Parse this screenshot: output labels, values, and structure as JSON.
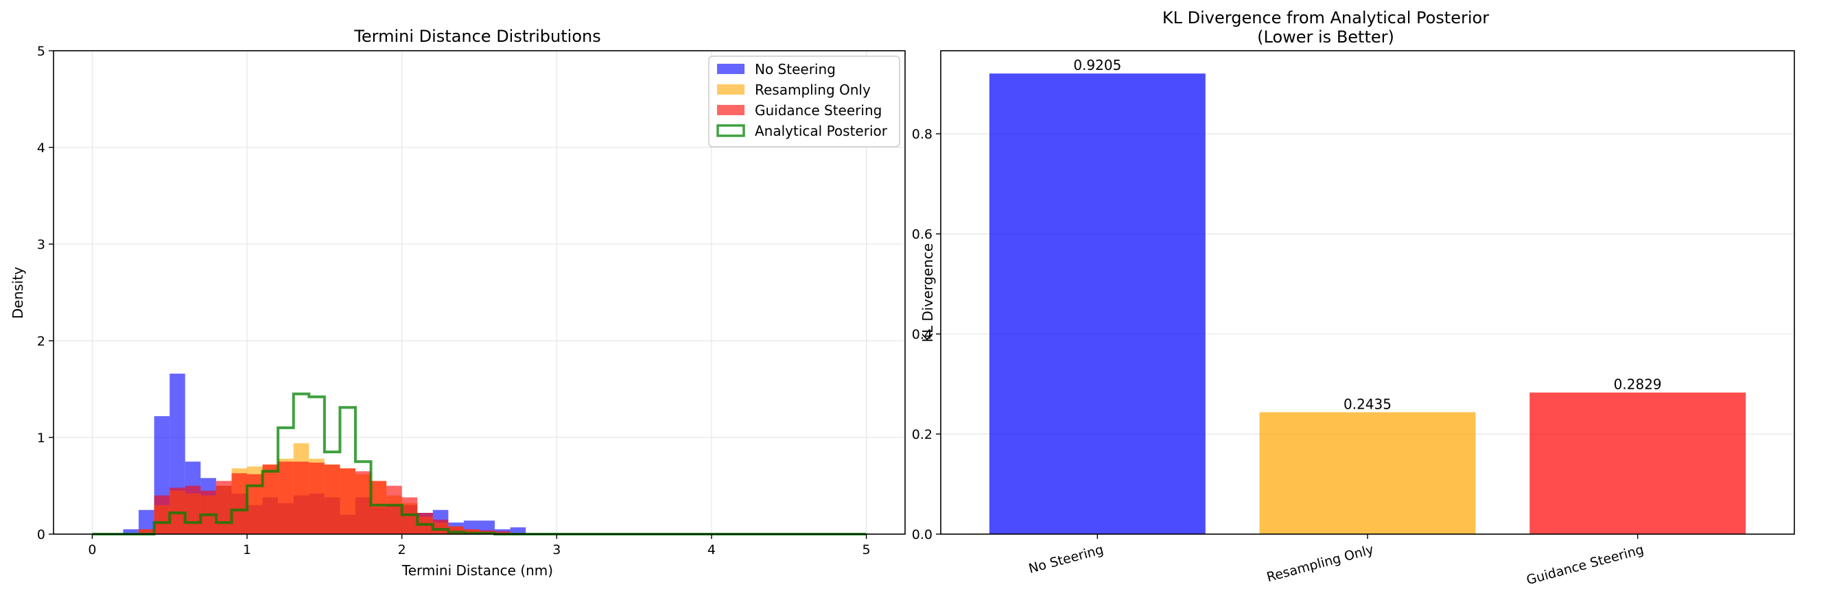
{
  "charts": [
    {
      "type": "histogram",
      "title": "Termini Distance Distributions",
      "xlabel": "Termini Distance (nm)",
      "ylabel": "Density",
      "xlim": [
        -0.25,
        5.25
      ],
      "ylim": [
        0,
        5
      ],
      "xticks": [
        "0",
        "1",
        "2",
        "3",
        "4",
        "5"
      ],
      "yticks": [
        "0",
        "1",
        "2",
        "3",
        "4",
        "5"
      ],
      "grid": true,
      "legend_position": "top-right",
      "bin_edges": [
        0.0,
        0.1,
        0.2,
        0.3,
        0.4,
        0.5,
        0.6,
        0.7,
        0.8,
        0.9,
        1.0,
        1.1,
        1.2,
        1.3,
        1.4,
        1.5,
        1.6,
        1.7,
        1.8,
        1.9,
        2.0,
        2.1,
        2.2,
        2.3,
        2.4,
        2.5,
        2.6,
        2.7,
        2.8,
        2.9,
        3.0
      ],
      "series": [
        {
          "name": "No Steering",
          "color": "#0000ff",
          "style": "filled",
          "values": [
            0,
            0,
            0.05,
            0.25,
            1.22,
            1.66,
            0.75,
            0.58,
            0.5,
            0.42,
            0.3,
            0.38,
            0.32,
            0.4,
            0.42,
            0.38,
            0.2,
            0.38,
            0.28,
            0.3,
            0.3,
            0.22,
            0.25,
            0.12,
            0.14,
            0.14,
            0.05,
            0.07,
            0,
            0
          ]
        },
        {
          "name": "Resampling Only",
          "color": "#ffa500",
          "style": "filled",
          "values": [
            0,
            0,
            0,
            0.05,
            0.3,
            0.45,
            0.42,
            0.4,
            0.5,
            0.68,
            0.7,
            0.72,
            0.78,
            0.94,
            0.78,
            0.72,
            0.68,
            0.62,
            0.55,
            0.4,
            0.32,
            0.18,
            0.12,
            0.08,
            0.05,
            0.03,
            0.02,
            0.01,
            0,
            0
          ]
        },
        {
          "name": "Guidance Steering",
          "color": "#ff0000",
          "style": "filled",
          "values": [
            0,
            0,
            0,
            0.05,
            0.4,
            0.48,
            0.5,
            0.45,
            0.55,
            0.63,
            0.62,
            0.72,
            0.75,
            0.75,
            0.74,
            0.72,
            0.68,
            0.65,
            0.55,
            0.5,
            0.38,
            0.22,
            0.15,
            0.08,
            0.05,
            0.04,
            0.03,
            0.01,
            0,
            0
          ]
        }
      ],
      "outline": {
        "name": "Analytical Posterior",
        "color": "#008000",
        "style": "step",
        "bin_edges": [
          0.0,
          0.1,
          0.2,
          0.3,
          0.4,
          0.5,
          0.6,
          0.7,
          0.8,
          0.9,
          1.0,
          1.1,
          1.2,
          1.3,
          1.4,
          1.5,
          1.6,
          1.7,
          1.8,
          1.9,
          2.0,
          2.1,
          2.2,
          2.3,
          2.4,
          2.5,
          2.6,
          2.7,
          2.8,
          2.9,
          3.0,
          3.1,
          3.2,
          3.3,
          3.4,
          3.5,
          3.6,
          3.7,
          3.8,
          3.9,
          4.0,
          4.1,
          4.2,
          4.3,
          4.4,
          4.5,
          4.6,
          4.7,
          4.8,
          4.9,
          5.0
        ],
        "values": [
          0,
          0,
          0,
          0,
          0.12,
          0.22,
          0.12,
          0.2,
          0.12,
          0.25,
          0.5,
          0.65,
          1.1,
          1.45,
          1.42,
          0.85,
          1.31,
          0.75,
          0.3,
          0.3,
          0.2,
          0.1,
          0.05,
          0.02,
          0.01,
          0.01,
          0,
          0,
          0,
          0,
          0,
          0,
          0,
          0,
          0,
          0,
          0,
          0,
          0,
          0,
          0,
          0,
          0,
          0,
          0,
          0,
          0,
          0,
          0,
          0
        ]
      }
    },
    {
      "type": "bar",
      "title": "KL Divergence from Analytical Posterior",
      "subtitle": "(Lower is Better)",
      "xlabel": "",
      "ylabel": "KL Divergence",
      "ylim": [
        0,
        0.966
      ],
      "yticks": [
        "0.0",
        "0.2",
        "0.4",
        "0.6",
        "0.8"
      ],
      "ytick_values": [
        0,
        0.2,
        0.4,
        0.6,
        0.8
      ],
      "grid": "y-axis",
      "categories": [
        "No Steering",
        "Resampling Only",
        "Guidance Steering"
      ],
      "values": [
        0.9205,
        0.2435,
        0.2829
      ],
      "value_labels": [
        "0.9205",
        "0.2435",
        "0.2829"
      ],
      "colors": [
        "#0000ff",
        "#ffa500",
        "#ff0000"
      ]
    }
  ]
}
